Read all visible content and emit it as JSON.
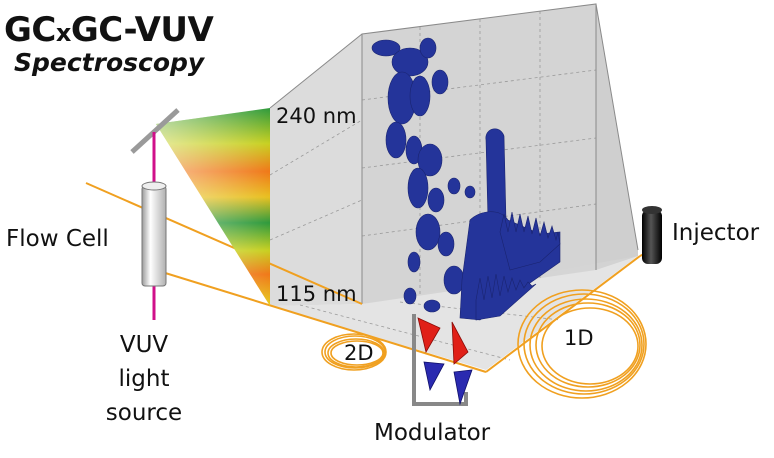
{
  "title": {
    "line1_a": "GC",
    "line1_x": "x",
    "line1_b": "GC-VUV",
    "line2": "Spectroscopy"
  },
  "labels": {
    "flow_cell": "Flow Cell",
    "vuv_source": [
      "VUV",
      "light",
      "source"
    ],
    "wavelength_top": "240 nm",
    "wavelength_bottom": "115 nm",
    "injector": "Injector",
    "modulator": "Modulator",
    "column_2d": "2D",
    "column_1d": "1D"
  },
  "colors": {
    "column_line": "#f0a020",
    "light_beam": "#d0108a",
    "spectrum_top": "#2e9a3c",
    "spectrum_mid": "#f07818",
    "spectrum_bottom": "#e6d020",
    "peak_fill": "#24349a",
    "modulator_red": "#e02018",
    "modulator_blue": "#2a2ab0",
    "box_face": "#d8d8d8"
  }
}
